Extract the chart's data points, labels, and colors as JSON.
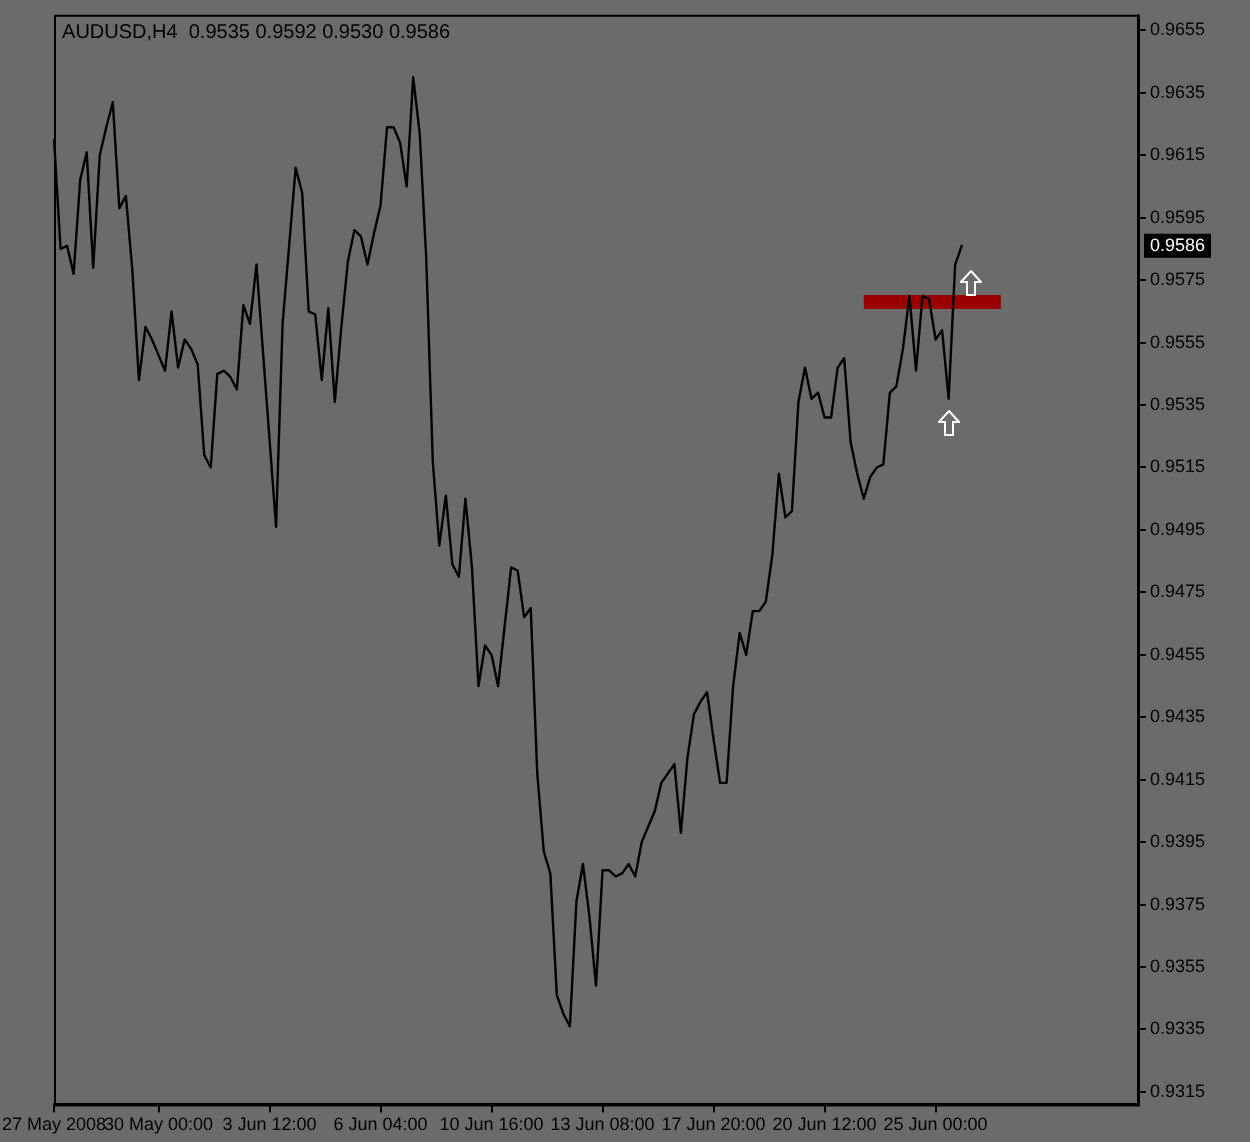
{
  "chart_data": {
    "type": "line",
    "title": "AUDUSD,H4  0.9535 0.9592 0.9530 0.9586",
    "categories": [
      "27 May 2008",
      null,
      null,
      null,
      null,
      null,
      null,
      null,
      null,
      null,
      null,
      null,
      null,
      null,
      null,
      null,
      "30 May 00:00",
      null,
      null,
      null,
      null,
      null,
      null,
      null,
      null,
      null,
      null,
      null,
      null,
      null,
      null,
      null,
      null,
      "3 Jun 12:00",
      null,
      null,
      null,
      null,
      null,
      null,
      null,
      null,
      null,
      null,
      null,
      null,
      null,
      null,
      null,
      null,
      "6 Jun 04:00",
      null,
      null,
      null,
      null,
      null,
      null,
      null,
      null,
      null,
      null,
      null,
      null,
      null,
      null,
      null,
      null,
      "10 Jun 16:00",
      null,
      null,
      null,
      null,
      null,
      null,
      null,
      null,
      null,
      null,
      null,
      null,
      null,
      null,
      null,
      null,
      "13 Jun 08:00",
      null,
      null,
      null,
      null,
      null,
      null,
      null,
      null,
      null,
      null,
      null,
      null,
      null,
      null,
      null,
      null,
      "17 Jun 20:00",
      null,
      null,
      null,
      null,
      null,
      null,
      null,
      null,
      null,
      null,
      null,
      null,
      null,
      null,
      null,
      null,
      "20 Jun 12:00",
      null,
      null,
      null,
      null,
      null,
      null,
      null,
      null,
      null,
      null,
      null,
      null,
      null,
      null,
      null,
      null,
      "25 Jun 00:00",
      null,
      null,
      null,
      null,
      null,
      null,
      null,
      null,
      null,
      null,
      null,
      null,
      null,
      null,
      null,
      null,
      null,
      null,
      null,
      null,
      null,
      null,
      null,
      null,
      null,
      null,
      null,
      null,
      null,
      null,
      null
    ],
    "series": [
      {
        "color": "#000000",
        "values": [
          0.962,
          0.9585,
          0.9586,
          0.9577,
          0.9607,
          0.9616,
          0.9579,
          0.9615,
          0.9624,
          0.9632,
          0.9598,
          0.9602,
          0.9578,
          0.9543,
          0.956,
          0.9556,
          0.9551,
          0.9546,
          0.9565,
          0.9547,
          0.9556,
          0.9553,
          0.9548,
          0.9519,
          0.9515,
          0.9545,
          0.9546,
          0.9544,
          0.954,
          0.9567,
          0.9561,
          0.958,
          0.9552,
          0.9524,
          0.9496,
          0.9561,
          0.9586,
          0.9611,
          0.9603,
          0.9565,
          0.9564,
          0.9543,
          0.9566,
          0.9536,
          0.956,
          0.9581,
          0.9591,
          0.9589,
          0.958,
          0.959,
          0.9599,
          0.9624,
          0.9624,
          0.9619,
          0.9605,
          0.964,
          0.9622,
          0.9582,
          0.9517,
          0.949,
          0.9506,
          0.9484,
          0.948,
          0.9505,
          0.9483,
          0.9445,
          0.9458,
          0.9455,
          0.9445,
          0.9464,
          0.9483,
          0.9482,
          0.9467,
          0.947,
          0.9417,
          0.9392,
          0.9385,
          0.9346,
          0.934,
          0.9336,
          0.9376,
          0.9388,
          0.9371,
          0.9349,
          0.9386,
          0.9386,
          0.9384,
          0.9385,
          0.9388,
          0.9384,
          0.9395,
          0.94,
          0.9405,
          0.9414,
          0.9417,
          0.942,
          0.9398,
          0.9422,
          0.9436,
          0.944,
          0.9443,
          0.9428,
          0.9414,
          0.9414,
          0.9445,
          0.9462,
          0.9455,
          0.9469,
          0.9469,
          0.9472,
          0.9487,
          0.9513,
          0.9499,
          0.9501,
          0.9536,
          0.9547,
          0.9537,
          0.9539,
          0.9531,
          0.9531,
          0.9547,
          0.955,
          0.9523,
          0.9513,
          0.9505,
          0.9512,
          0.9515,
          0.9516,
          0.9539,
          0.9541,
          0.9553,
          0.957,
          0.9546,
          0.957,
          0.9569,
          0.9556,
          0.9559,
          0.9537,
          0.958,
          0.9586,
          null,
          null,
          null,
          null,
          null,
          null,
          null,
          null,
          null,
          null,
          null,
          null,
          null,
          null,
          null,
          null,
          null,
          null,
          null,
          null,
          null,
          null,
          null,
          null,
          null,
          null,
          null
        ]
      },
      {
        "type": "line",
        "color": "#990000",
        "values": [
          null,
          null,
          null,
          null,
          null,
          null,
          null,
          null,
          null,
          null,
          null,
          null,
          null,
          null,
          null,
          null,
          null,
          null,
          null,
          null,
          null,
          null,
          null,
          null,
          null,
          null,
          null,
          null,
          null,
          null,
          null,
          null,
          null,
          null,
          null,
          null,
          null,
          null,
          null,
          null,
          null,
          null,
          null,
          null,
          null,
          null,
          null,
          null,
          null,
          null,
          null,
          null,
          null,
          null,
          null,
          null,
          null,
          null,
          null,
          null,
          null,
          null,
          null,
          null,
          null,
          null,
          null,
          null,
          null,
          null,
          null,
          null,
          null,
          null,
          null,
          null,
          null,
          null,
          null,
          null,
          null,
          null,
          null,
          null,
          null,
          null,
          null,
          null,
          null,
          null,
          null,
          null,
          null,
          null,
          null,
          null,
          null,
          null,
          null,
          null,
          null,
          null,
          null,
          null,
          null,
          null,
          null,
          null,
          null,
          null,
          null,
          null,
          null,
          null,
          null,
          null,
          null,
          null,
          null,
          null,
          null,
          null,
          null,
          null,
          0.9568,
          0.9568,
          0.9568,
          0.9568,
          0.9568,
          0.9568,
          0.9568,
          0.9568,
          0.9568,
          0.9568,
          0.9568,
          0.9568,
          0.9568,
          0.9568,
          0.9568,
          0.9568,
          0.9568,
          0.9568,
          0.9568,
          0.9568,
          0.9568,
          0.9568,
          null,
          null,
          null,
          null,
          null,
          null,
          null,
          null,
          null,
          null,
          null,
          null,
          null,
          null,
          null,
          null,
          null,
          null,
          null,
          null,
          null
        ]
      }
    ],
    "ylim": [
      0.9311,
      0.966
    ],
    "yticks": [
      0.9315,
      0.9335,
      0.9355,
      0.9375,
      0.9395,
      0.9415,
      0.9435,
      0.9455,
      0.9475,
      0.9495,
      0.9515,
      0.9535,
      0.9555,
      0.9575,
      0.9595,
      0.9615,
      0.9635,
      0.9655
    ],
    "annotations": [
      {
        "text": "0.9586",
        "y": 0.9586
      }
    ],
    "grid": false,
    "legend": false
  }
}
